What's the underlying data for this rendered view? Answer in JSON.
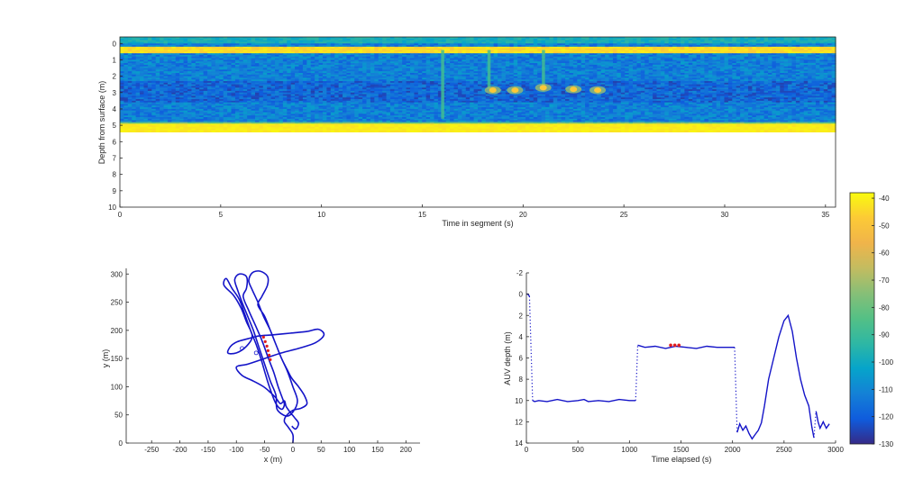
{
  "chart_data": [
    {
      "type": "heatmap",
      "xlabel": "Time in segment (s)",
      "ylabel": "Depth from surface (m)",
      "xlim": [
        0,
        35.5
      ],
      "ylim": [
        10,
        -0.4
      ],
      "xticks": [
        "0",
        "5",
        "10",
        "15",
        "20",
        "25",
        "30",
        "35"
      ],
      "yticks": [
        "0",
        "1",
        "2",
        "3",
        "4",
        "5",
        "6",
        "7",
        "8",
        "9",
        "10"
      ],
      "data_depth_range": [
        -0.4,
        5.4
      ],
      "surface_band_depth": [
        0.1,
        0.55
      ],
      "bottom_band_depth": [
        4.85,
        5.4
      ],
      "background_level": -112,
      "vertical_streaks": [
        {
          "time": 16.0,
          "depth_range": [
            0.4,
            4.6
          ]
        },
        {
          "time": 18.3,
          "depth_range": [
            0.4,
            2.8
          ]
        },
        {
          "time": 21.0,
          "depth_range": [
            0.4,
            2.6
          ]
        }
      ],
      "targets": [
        {
          "time": 18.5,
          "depth": 2.85
        },
        {
          "time": 19.6,
          "depth": 2.85
        },
        {
          "time": 21.0,
          "depth": 2.7
        },
        {
          "time": 22.5,
          "depth": 2.8
        },
        {
          "time": 23.7,
          "depth": 2.85
        }
      ]
    },
    {
      "type": "line",
      "xlabel": "x (m)",
      "ylabel": "y (m)",
      "xlim": [
        -295,
        225
      ],
      "ylim": [
        0,
        310
      ],
      "xticks": [
        "-250",
        "-200",
        "-150",
        "-100",
        "-50",
        "0",
        "50",
        "100",
        "150",
        "200"
      ],
      "yticks": [
        "0",
        "50",
        "100",
        "150",
        "200",
        "250",
        "300"
      ],
      "track": [
        [
          0,
          0
        ],
        [
          0,
          15
        ],
        [
          -8,
          28
        ],
        [
          -15,
          38
        ],
        [
          -12,
          48
        ],
        [
          0,
          58
        ],
        [
          15,
          62
        ],
        [
          25,
          70
        ],
        [
          20,
          85
        ],
        [
          10,
          100
        ],
        [
          -2,
          115
        ],
        [
          -10,
          130
        ],
        [
          -20,
          150
        ],
        [
          -30,
          175
        ],
        [
          -40,
          200
        ],
        [
          -52,
          225
        ],
        [
          -62,
          250
        ],
        [
          -72,
          272
        ],
        [
          -78,
          288
        ],
        [
          -72,
          302
        ],
        [
          -58,
          305
        ],
        [
          -45,
          296
        ],
        [
          -45,
          280
        ],
        [
          -55,
          260
        ],
        [
          -62,
          245
        ],
        [
          -50,
          225
        ],
        [
          -40,
          200
        ],
        [
          -30,
          175
        ],
        [
          -20,
          150
        ],
        [
          -10,
          128
        ],
        [
          0,
          100
        ],
        [
          8,
          75
        ],
        [
          0,
          55
        ],
        [
          -12,
          48
        ],
        [
          -28,
          60
        ],
        [
          -30,
          85
        ],
        [
          -40,
          110
        ],
        [
          -50,
          140
        ],
        [
          -60,
          170
        ],
        [
          -70,
          200
        ],
        [
          -80,
          225
        ],
        [
          -90,
          250
        ],
        [
          -98,
          272
        ],
        [
          -103,
          290
        ],
        [
          -95,
          300
        ],
        [
          -82,
          295
        ],
        [
          -82,
          275
        ],
        [
          -88,
          260
        ],
        [
          -78,
          235
        ],
        [
          -66,
          208
        ],
        [
          -54,
          180
        ],
        [
          -44,
          152
        ],
        [
          -34,
          126
        ],
        [
          -26,
          100
        ],
        [
          -18,
          78
        ],
        [
          -15,
          68
        ],
        [
          -20,
          60
        ],
        [
          -30,
          70
        ],
        [
          -40,
          95
        ],
        [
          -48,
          120
        ],
        [
          -56,
          148
        ],
        [
          -65,
          175
        ],
        [
          -75,
          200
        ],
        [
          -85,
          228
        ],
        [
          -95,
          255
        ],
        [
          -108,
          275
        ],
        [
          -118,
          292
        ],
        [
          -122,
          280
        ],
        [
          -105,
          262
        ],
        [
          -92,
          240
        ],
        [
          -82,
          215
        ],
        [
          -72,
          190
        ],
        [
          -82,
          172
        ],
        [
          -100,
          160
        ],
        [
          -115,
          160
        ],
        [
          -110,
          172
        ],
        [
          -98,
          180
        ],
        [
          -80,
          185
        ],
        [
          -60,
          190
        ],
        [
          -35,
          192
        ],
        [
          -5,
          195
        ],
        [
          25,
          198
        ],
        [
          45,
          202
        ],
        [
          55,
          192
        ],
        [
          40,
          178
        ],
        [
          10,
          168
        ],
        [
          -20,
          160
        ],
        [
          -50,
          150
        ],
        [
          -80,
          140
        ],
        [
          -100,
          135
        ],
        [
          -90,
          120
        ],
        [
          -70,
          110
        ],
        [
          -52,
          100
        ],
        [
          -40,
          90
        ],
        [
          -30,
          80
        ],
        [
          -22,
          70
        ],
        [
          -15,
          75
        ],
        [
          -12,
          65
        ],
        [
          -5,
          55
        ],
        [
          3,
          45
        ],
        [
          10,
          35
        ],
        [
          5,
          25
        ],
        [
          -2,
          30
        ]
      ],
      "highlight": [
        [
          -52,
          188
        ],
        [
          -49,
          180
        ],
        [
          -46,
          172
        ],
        [
          -44,
          164
        ],
        [
          -42,
          156
        ],
        [
          -40,
          148
        ]
      ],
      "markers": [
        [
          -65,
          160
        ],
        [
          -90,
          168
        ]
      ]
    },
    {
      "type": "line",
      "xlabel": "Time elapsed (s)",
      "ylabel": "AUV depth (m)",
      "xlim": [
        0,
        3000
      ],
      "ylim": [
        14,
        -2
      ],
      "xticks": [
        "0",
        "500",
        "1000",
        "1500",
        "2000",
        "2500",
        "3000"
      ],
      "yticks": [
        "-2",
        "0",
        "2",
        "4",
        "6",
        "8",
        "10",
        "12",
        "14"
      ],
      "segments": [
        {
          "style": "solid",
          "points": [
            [
              0,
              0
            ],
            [
              15,
              0
            ],
            [
              30,
              0.2
            ]
          ]
        },
        {
          "style": "dotted",
          "points": [
            [
              30,
              0.2
            ],
            [
              60,
              10
            ]
          ]
        },
        {
          "style": "solid",
          "points": [
            [
              60,
              10
            ],
            [
              80,
              10.1
            ],
            [
              120,
              10
            ],
            [
              200,
              10.1
            ],
            [
              300,
              9.9
            ],
            [
              400,
              10.1
            ],
            [
              500,
              10
            ],
            [
              560,
              9.9
            ],
            [
              600,
              10.1
            ],
            [
              700,
              10
            ],
            [
              800,
              10.1
            ],
            [
              900,
              9.9
            ],
            [
              1000,
              10
            ],
            [
              1060,
              10
            ]
          ]
        },
        {
          "style": "dotted",
          "points": [
            [
              1060,
              10
            ],
            [
              1080,
              4.8
            ]
          ]
        },
        {
          "style": "solid",
          "points": [
            [
              1080,
              4.8
            ],
            [
              1150,
              5
            ],
            [
              1250,
              4.9
            ],
            [
              1350,
              5.1
            ],
            [
              1450,
              4.9
            ],
            [
              1550,
              5
            ],
            [
              1650,
              5.1
            ],
            [
              1750,
              4.9
            ],
            [
              1850,
              5
            ],
            [
              1950,
              5
            ],
            [
              2020,
              5
            ]
          ]
        },
        {
          "style": "dotted",
          "points": [
            [
              2020,
              5
            ],
            [
              2045,
              13
            ]
          ]
        },
        {
          "style": "solid",
          "points": [
            [
              2045,
              13
            ],
            [
              2070,
              12.2
            ],
            [
              2100,
              12.8
            ],
            [
              2130,
              12.4
            ],
            [
              2160,
              13.1
            ],
            [
              2190,
              13.6
            ],
            [
              2220,
              13.2
            ],
            [
              2250,
              12.8
            ],
            [
              2280,
              12.1
            ],
            [
              2310,
              10.5
            ],
            [
              2350,
              8
            ],
            [
              2400,
              6
            ],
            [
              2450,
              4
            ],
            [
              2500,
              2.5
            ],
            [
              2540,
              2
            ],
            [
              2580,
              3.5
            ],
            [
              2620,
              6
            ],
            [
              2660,
              8
            ],
            [
              2700,
              9.5
            ],
            [
              2740,
              10.5
            ],
            [
              2770,
              12.5
            ],
            [
              2790,
              13.5
            ]
          ]
        },
        {
          "style": "dotted",
          "points": [
            [
              2790,
              13.5
            ],
            [
              2810,
              11
            ]
          ]
        },
        {
          "style": "solid",
          "points": [
            [
              2810,
              11
            ],
            [
              2830,
              12
            ],
            [
              2850,
              12.6
            ],
            [
              2880,
              12
            ],
            [
              2910,
              12.6
            ],
            [
              2940,
              12.2
            ]
          ]
        }
      ],
      "highlight": [
        [
          1400,
          4.8
        ],
        [
          1440,
          4.8
        ],
        [
          1480,
          4.8
        ]
      ]
    }
  ],
  "colorbar": {
    "ticks": [
      "-40",
      "-50",
      "-60",
      "-70",
      "-80",
      "-90",
      "-100",
      "-110",
      "-120",
      "-130"
    ],
    "range": [
      -130,
      -38
    ]
  },
  "colors": {
    "track": "#1414c8",
    "highlight": "#e01e1e",
    "axis": "#262626"
  }
}
